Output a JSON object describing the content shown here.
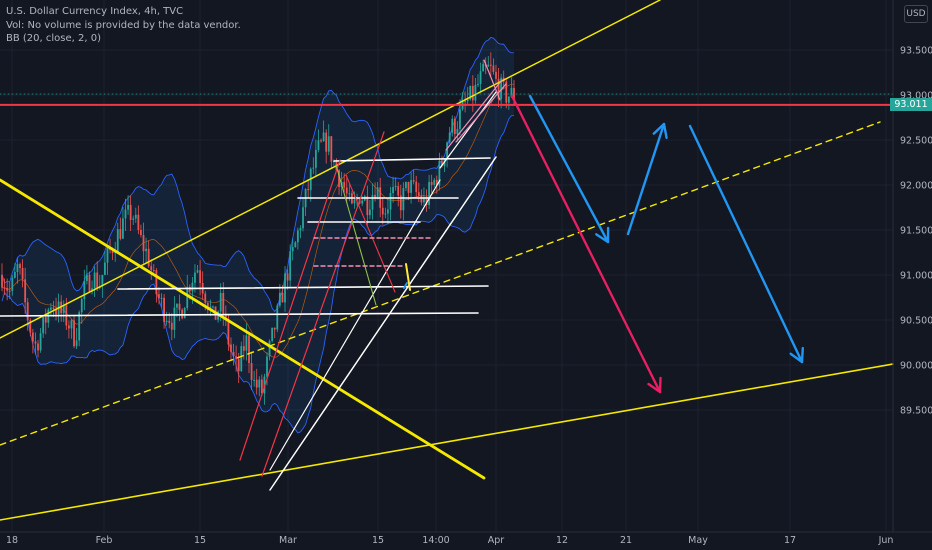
{
  "legend": {
    "title": "U.S. Dollar Currency Index, 4h, TVC",
    "volume_note": "Vol: No volume is provided by the data vendor.",
    "indicator": "BB (20, close, 2, 0)"
  },
  "currency_button": "USD",
  "current_price": "93.011",
  "colors": {
    "background": "#131722",
    "grid": "#1e2230",
    "axis_text": "#b2b5be",
    "up_candle": "#26a69a",
    "down_candle": "#ef5350",
    "bb_band": "#2962ff",
    "yellow": "#f5e900",
    "red_line": "#f23645",
    "white": "#ffffff",
    "blue_arrow": "#2196f3",
    "pink_arrow": "#e91e63"
  },
  "chart_data": {
    "type": "candlestick",
    "y_axis_ticks": [
      "93.500",
      "93.000",
      "92.500",
      "92.000",
      "91.500",
      "91.000",
      "90.500",
      "90.000",
      "89.500"
    ],
    "y_tick_values": [
      93.5,
      93.0,
      92.5,
      92.0,
      91.5,
      91.0,
      90.5,
      90.0,
      89.5
    ],
    "x_axis_ticks": [
      "18",
      "Feb",
      "15",
      "Mar",
      "15",
      "14:00",
      "Apr",
      "12",
      "21",
      "May",
      "17",
      "Jun"
    ],
    "ylim": [
      89.25,
      94.0
    ],
    "price_path": [
      91.0,
      90.8,
      91.1,
      90.6,
      90.2,
      90.4,
      90.7,
      90.6,
      90.5,
      90.3,
      90.8,
      91.0,
      90.9,
      91.2,
      91.4,
      91.6,
      91.7,
      91.4,
      91.2,
      90.8,
      90.6,
      90.5,
      90.6,
      90.9,
      91.1,
      90.8,
      90.5,
      90.7,
      90.2,
      89.9,
      90.3,
      89.8,
      89.7,
      90.2,
      90.6,
      91.0,
      91.3,
      91.7,
      92.1,
      92.4,
      92.5,
      92.2,
      92.0,
      91.7,
      91.9,
      91.8,
      92.0,
      91.7,
      91.9,
      91.8,
      92.0,
      91.9,
      91.8,
      92.0,
      92.2,
      92.6,
      92.7,
      92.9,
      93.0,
      93.2,
      93.3,
      93.1,
      93.0,
      93.0
    ],
    "horizontal_levels": [
      {
        "price": 92.89,
        "color": "red_line"
      },
      {
        "price": 92.52,
        "color": "white"
      },
      {
        "price": 92.2,
        "color": "white"
      },
      {
        "price": 91.95,
        "color": "white"
      },
      {
        "price": 91.38,
        "color": "white"
      },
      {
        "price": 91.15,
        "color": "white"
      }
    ],
    "projections": [
      {
        "name": "blue-down-1",
        "from_date": "after Apr",
        "color": "blue_arrow"
      },
      {
        "name": "blue-up",
        "color": "blue_arrow"
      },
      {
        "name": "blue-down-2",
        "color": "blue_arrow"
      },
      {
        "name": "pink-down",
        "color": "pink_arrow"
      }
    ]
  }
}
